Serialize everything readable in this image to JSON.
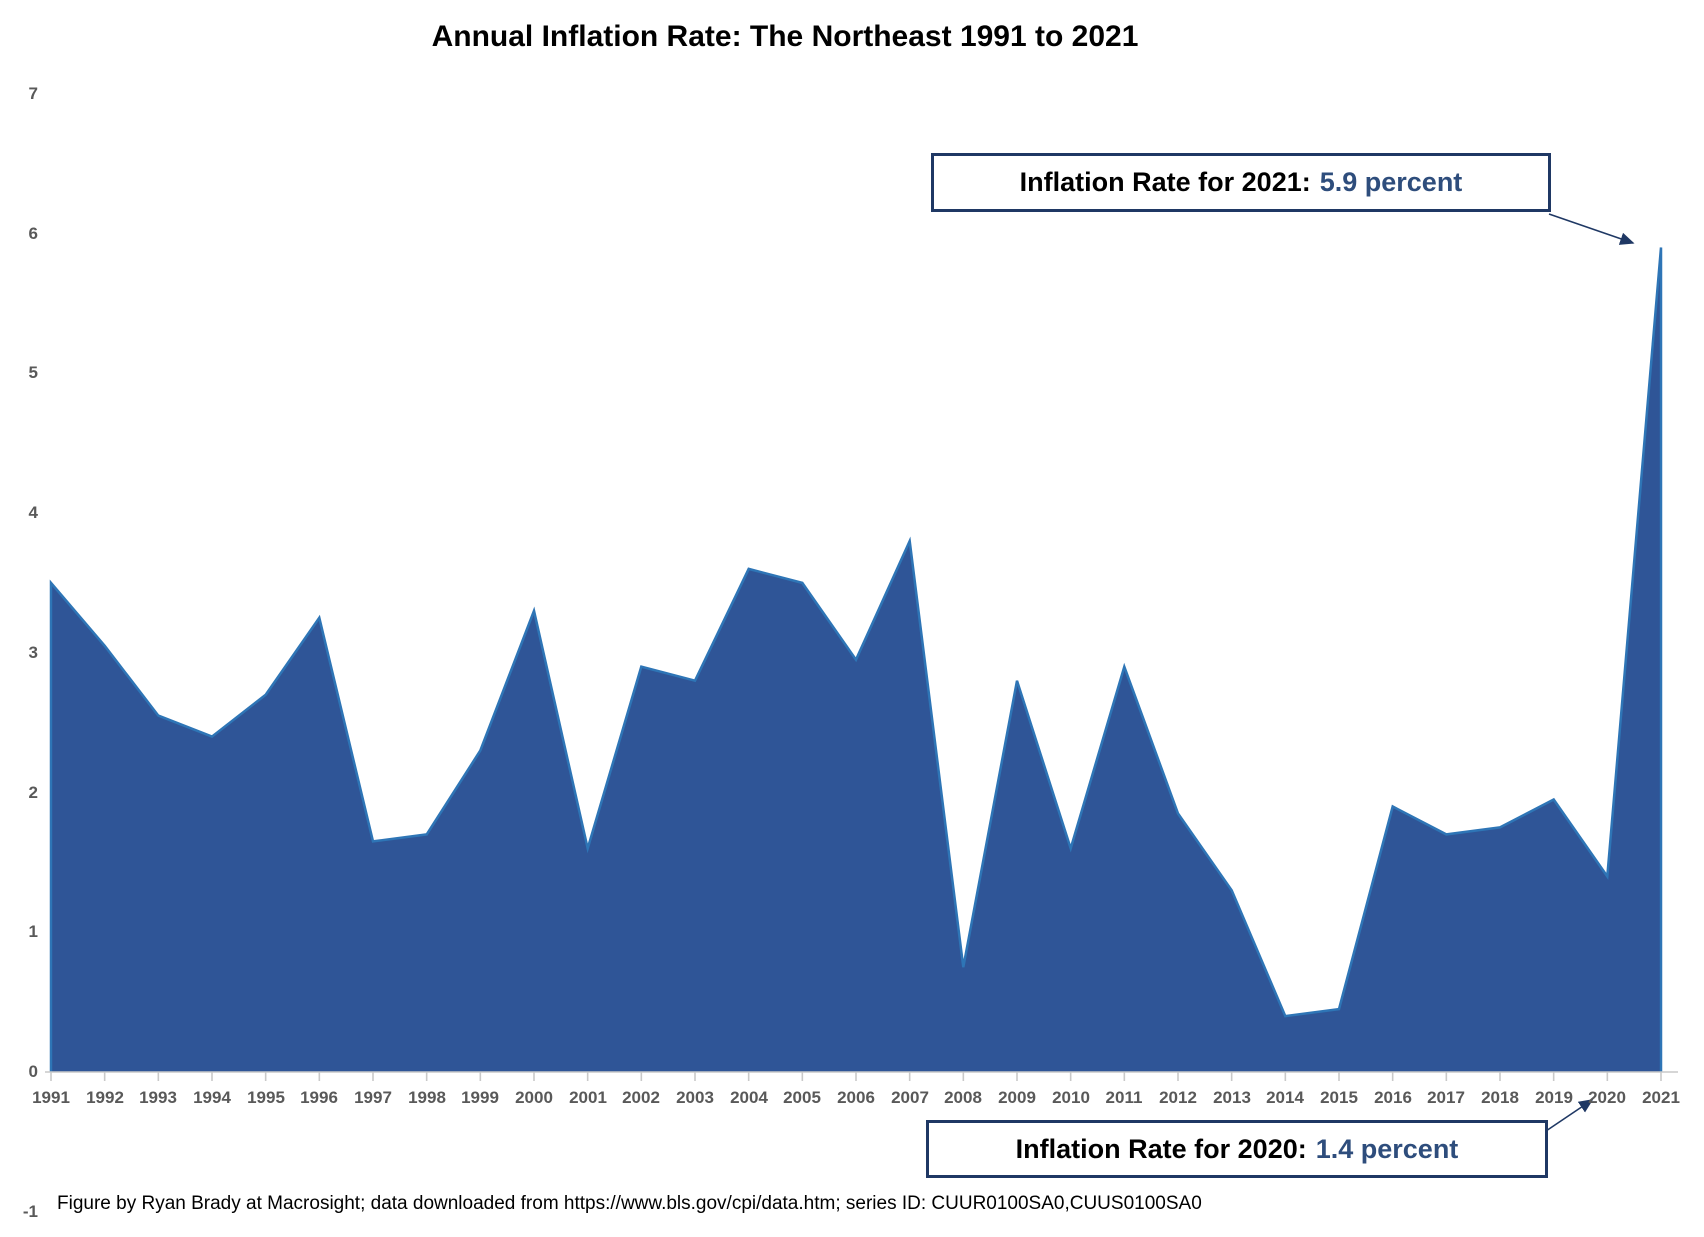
{
  "title": "Annual Inflation Rate: The Northeast 1991 to 2021",
  "footnote": "Figure by Ryan Brady at Macrosight; data downloaded from https://www.bls.gov/cpi/data.htm; series ID: CUUR0100SA0,CUUS0100SA0",
  "annotations": {
    "y2021": {
      "label": "Inflation Rate for 2021:",
      "value": "5.9 percent"
    },
    "y2020": {
      "label": "Inflation Rate for 2020:",
      "value": "1.4 percent"
    }
  },
  "colors": {
    "area_fill": "#2f5597",
    "area_line": "#2e75b6",
    "box_border": "#1f3864",
    "value_text": "#2e4d7c",
    "axis_label": "#595959",
    "axis_line": "#c9c9c9"
  },
  "chart_data": {
    "type": "area",
    "title": "Annual Inflation Rate: The Northeast 1991 to 2021",
    "categories": [
      "1991",
      "1992",
      "1993",
      "1994",
      "1995",
      "1996",
      "1997",
      "1998",
      "1999",
      "2000",
      "2001",
      "2002",
      "2003",
      "2004",
      "2005",
      "2006",
      "2007",
      "2008",
      "2009",
      "2010",
      "2011",
      "2012",
      "2013",
      "2014",
      "2015",
      "2016",
      "2017",
      "2018",
      "2019",
      "2020",
      "2021"
    ],
    "values": [
      3.5,
      3.05,
      2.55,
      2.4,
      2.7,
      3.25,
      1.65,
      1.7,
      2.3,
      3.3,
      1.6,
      2.9,
      2.8,
      3.6,
      3.5,
      2.95,
      3.8,
      0.75,
      2.8,
      1.6,
      2.9,
      1.85,
      1.3,
      0.4,
      0.45,
      1.9,
      1.7,
      1.75,
      1.95,
      1.4,
      5.9
    ],
    "xlabel": "",
    "ylabel": "",
    "ylim": [
      -1,
      7
    ],
    "y_ticks": [
      "7",
      "6",
      "5",
      "4",
      "3",
      "2",
      "1",
      "0",
      "-1"
    ],
    "grid": false,
    "legend": false,
    "annotated_points": {
      "2020": 1.4,
      "2021": 5.9
    }
  }
}
